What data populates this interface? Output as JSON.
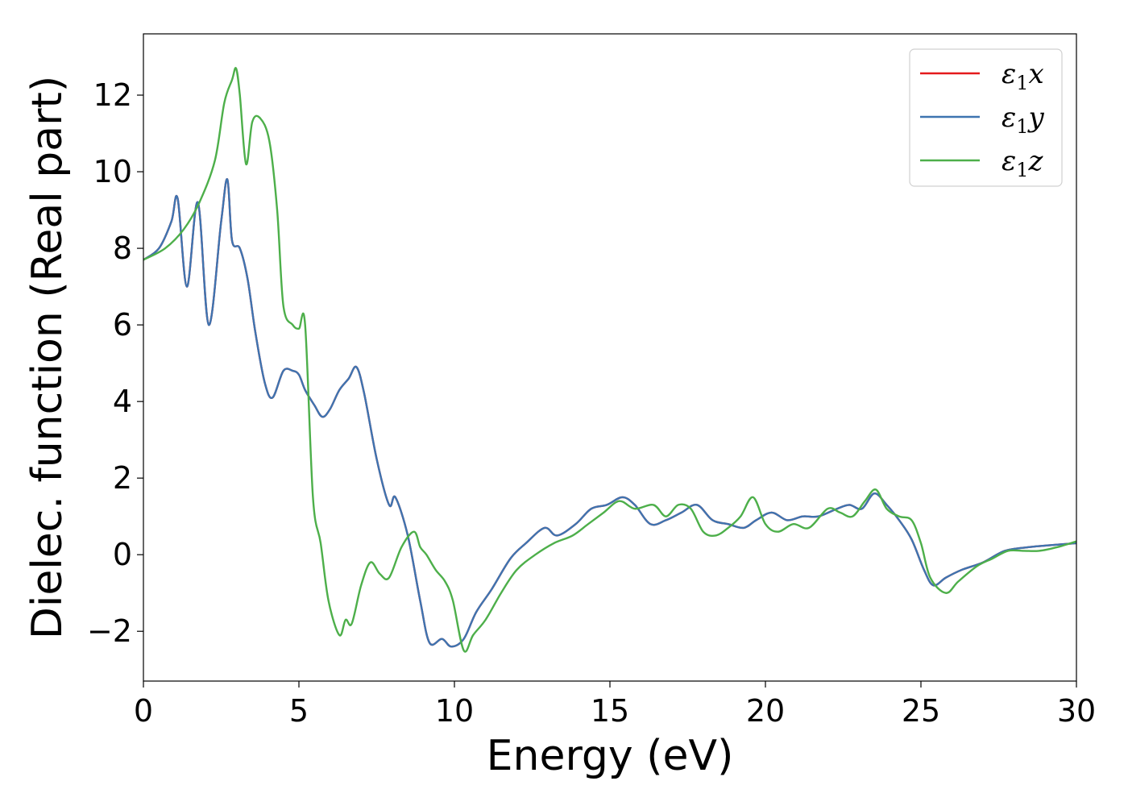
{
  "chart_data": {
    "type": "line",
    "title": "",
    "xlabel": "Energy (eV)",
    "ylabel": "Dielec. function (Real part)",
    "xlim": [
      0,
      30
    ],
    "ylim": [
      -3.3,
      13.6
    ],
    "xticks": [
      0,
      5,
      10,
      15,
      20,
      25,
      30
    ],
    "xtick_labels": [
      "0",
      "5",
      "10",
      "15",
      "20",
      "25",
      "30"
    ],
    "yticks": [
      -2,
      0,
      2,
      4,
      6,
      8,
      10,
      12
    ],
    "ytick_labels": [
      "−2",
      "0",
      "2",
      "4",
      "6",
      "8",
      "10",
      "12"
    ],
    "grid": false,
    "legend_position": "top-right",
    "series": [
      {
        "name": "x",
        "legend_base": "ε",
        "legend_sub": "1",
        "color": "#e41a1c",
        "x": [
          0,
          0.5,
          0.9,
          1.1,
          1.4,
          1.75,
          2.1,
          2.5,
          2.7,
          2.85,
          3.1,
          3.35,
          3.6,
          3.9,
          4.15,
          4.5,
          4.8,
          5.0,
          5.2,
          5.5,
          5.75,
          6.0,
          6.3,
          6.6,
          6.85,
          7.1,
          7.5,
          7.9,
          8.1,
          8.5,
          8.9,
          9.2,
          9.6,
          9.9,
          10.3,
          10.7,
          11.2,
          11.8,
          12.3,
          12.9,
          13.3,
          13.9,
          14.4,
          14.9,
          15.4,
          15.8,
          16.3,
          16.8,
          17.3,
          17.8,
          18.3,
          18.8,
          19.3,
          19.7,
          20.2,
          20.7,
          21.2,
          21.7,
          22.3,
          22.7,
          23.1,
          23.5,
          23.9,
          24.3,
          24.7,
          25.1,
          25.4,
          25.8,
          26.3,
          27.0,
          27.7,
          28.5,
          29.2,
          30.0
        ],
        "y": [
          7.7,
          8.0,
          8.7,
          9.3,
          7.0,
          9.2,
          6.0,
          8.7,
          9.8,
          8.2,
          8.0,
          7.2,
          5.8,
          4.5,
          4.1,
          4.8,
          4.8,
          4.7,
          4.3,
          3.9,
          3.6,
          3.8,
          4.3,
          4.6,
          4.9,
          4.2,
          2.5,
          1.3,
          1.5,
          0.5,
          -1.2,
          -2.3,
          -2.2,
          -2.4,
          -2.2,
          -1.5,
          -0.9,
          -0.1,
          0.3,
          0.7,
          0.5,
          0.8,
          1.2,
          1.3,
          1.5,
          1.3,
          0.8,
          0.9,
          1.1,
          1.3,
          0.9,
          0.8,
          0.7,
          0.9,
          1.1,
          0.9,
          1.0,
          1.0,
          1.2,
          1.3,
          1.2,
          1.6,
          1.3,
          0.9,
          0.4,
          -0.4,
          -0.8,
          -0.6,
          -0.4,
          -0.2,
          0.1,
          0.2,
          0.25,
          0.3
        ]
      },
      {
        "name": "y",
        "legend_base": "ε",
        "legend_sub": "1",
        "color": "#3e74b0",
        "x": [
          0,
          0.5,
          0.9,
          1.1,
          1.4,
          1.75,
          2.1,
          2.5,
          2.7,
          2.85,
          3.1,
          3.35,
          3.6,
          3.9,
          4.15,
          4.5,
          4.8,
          5.0,
          5.2,
          5.5,
          5.75,
          6.0,
          6.3,
          6.6,
          6.85,
          7.1,
          7.5,
          7.9,
          8.1,
          8.5,
          8.9,
          9.2,
          9.6,
          9.9,
          10.3,
          10.7,
          11.2,
          11.8,
          12.3,
          12.9,
          13.3,
          13.9,
          14.4,
          14.9,
          15.4,
          15.8,
          16.3,
          16.8,
          17.3,
          17.8,
          18.3,
          18.8,
          19.3,
          19.7,
          20.2,
          20.7,
          21.2,
          21.7,
          22.3,
          22.7,
          23.1,
          23.5,
          23.9,
          24.3,
          24.7,
          25.1,
          25.4,
          25.8,
          26.3,
          27.0,
          27.7,
          28.5,
          29.2,
          30.0
        ],
        "y": [
          7.7,
          8.0,
          8.7,
          9.3,
          7.0,
          9.2,
          6.0,
          8.7,
          9.8,
          8.2,
          8.0,
          7.2,
          5.8,
          4.5,
          4.1,
          4.8,
          4.8,
          4.7,
          4.3,
          3.9,
          3.6,
          3.8,
          4.3,
          4.6,
          4.9,
          4.2,
          2.5,
          1.3,
          1.5,
          0.5,
          -1.2,
          -2.3,
          -2.2,
          -2.4,
          -2.2,
          -1.5,
          -0.9,
          -0.1,
          0.3,
          0.7,
          0.5,
          0.8,
          1.2,
          1.3,
          1.5,
          1.3,
          0.8,
          0.9,
          1.1,
          1.3,
          0.9,
          0.8,
          0.7,
          0.9,
          1.1,
          0.9,
          1.0,
          1.0,
          1.2,
          1.3,
          1.2,
          1.6,
          1.3,
          0.9,
          0.4,
          -0.4,
          -0.8,
          -0.6,
          -0.4,
          -0.2,
          0.1,
          0.2,
          0.25,
          0.3
        ]
      },
      {
        "name": "z",
        "legend_base": "ε",
        "legend_sub": "1",
        "color": "#4daf4a",
        "x": [
          0,
          0.7,
          1.3,
          1.8,
          2.3,
          2.6,
          2.85,
          2.98,
          3.1,
          3.3,
          3.5,
          3.75,
          4.05,
          4.3,
          4.5,
          4.8,
          5.0,
          5.2,
          5.45,
          5.7,
          5.95,
          6.3,
          6.5,
          6.7,
          7.0,
          7.3,
          7.6,
          7.9,
          8.3,
          8.7,
          8.9,
          9.1,
          9.4,
          9.7,
          9.95,
          10.3,
          10.6,
          11.0,
          11.5,
          12.0,
          12.6,
          13.2,
          13.8,
          14.3,
          14.8,
          15.3,
          15.8,
          16.4,
          16.8,
          17.2,
          17.6,
          18.0,
          18.4,
          18.8,
          19.2,
          19.6,
          20.0,
          20.4,
          20.9,
          21.4,
          22.0,
          22.4,
          22.8,
          23.2,
          23.55,
          23.9,
          24.3,
          24.7,
          25.0,
          25.3,
          25.8,
          26.2,
          26.8,
          27.3,
          27.8,
          28.3,
          28.8,
          29.4,
          30.0
        ],
        "y": [
          7.7,
          8.0,
          8.5,
          9.2,
          10.3,
          11.8,
          12.4,
          12.7,
          12.0,
          10.2,
          11.3,
          11.4,
          10.8,
          9.0,
          6.5,
          6.0,
          5.9,
          6.0,
          1.5,
          0.3,
          -1.2,
          -2.1,
          -1.7,
          -1.8,
          -0.8,
          -0.2,
          -0.5,
          -0.6,
          0.2,
          0.6,
          0.2,
          0.0,
          -0.4,
          -0.7,
          -1.2,
          -2.5,
          -2.1,
          -1.7,
          -1.0,
          -0.4,
          0.0,
          0.3,
          0.5,
          0.8,
          1.1,
          1.4,
          1.2,
          1.3,
          1.0,
          1.3,
          1.2,
          0.6,
          0.5,
          0.7,
          1.0,
          1.5,
          0.8,
          0.6,
          0.8,
          0.7,
          1.2,
          1.1,
          1.0,
          1.4,
          1.7,
          1.2,
          1.0,
          0.9,
          0.3,
          -0.6,
          -1.0,
          -0.7,
          -0.3,
          -0.1,
          0.1,
          0.1,
          0.1,
          0.2,
          0.35
        ]
      }
    ]
  }
}
